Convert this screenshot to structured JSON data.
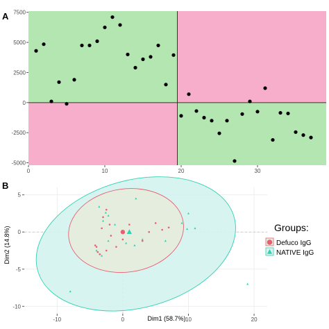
{
  "panels": {
    "a_label": "A",
    "b_label": "B"
  },
  "colors": {
    "quadrant_green": "#b3e6b0",
    "quadrant_pink": "#f7aecb",
    "point": "#000000",
    "defuco": "#e85f72",
    "native": "#2fd1b0",
    "ellipse_outer_fill": "#d4f3f0",
    "ellipse_outer_stroke": "#2fd1b0",
    "ellipse_inner_fill": "#e8ecdb",
    "ellipse_inner_stroke": "#e85f72"
  },
  "chart_data": [
    {
      "type": "scatter",
      "title": "",
      "xlabel": "",
      "ylabel": "",
      "xlim": [
        0,
        39
      ],
      "ylim": [
        -5200,
        7600
      ],
      "x_ticks": [
        0,
        10,
        20,
        30
      ],
      "y_ticks": [
        7500,
        5000,
        2500,
        0,
        -2500,
        -5000
      ],
      "x_tick_labels": [
        "0",
        "10",
        "20",
        "30"
      ],
      "y_tick_labels": [
        "7500",
        "5000",
        "2500",
        "0",
        "-2500",
        "-5000"
      ],
      "quadrant_split": {
        "x": 19.5,
        "y": 0
      },
      "quadrants": {
        "top_left": "green",
        "top_right": "pink",
        "bottom_left": "pink",
        "bottom_right": "green"
      },
      "grid": false,
      "points": [
        [
          1,
          4300
        ],
        [
          2,
          4850
        ],
        [
          3,
          100
        ],
        [
          4,
          1700
        ],
        [
          5,
          -100
        ],
        [
          6,
          1900
        ],
        [
          7,
          4750
        ],
        [
          8,
          4750
        ],
        [
          9,
          5100
        ],
        [
          10,
          6250
        ],
        [
          11,
          7100
        ],
        [
          12,
          6450
        ],
        [
          13,
          4000
        ],
        [
          14,
          2900
        ],
        [
          15,
          3600
        ],
        [
          16,
          3800
        ],
        [
          17,
          4750
        ],
        [
          18,
          1500
        ],
        [
          19,
          3950
        ],
        [
          20,
          -1100
        ],
        [
          21,
          700
        ],
        [
          22,
          -700
        ],
        [
          23,
          -1250
        ],
        [
          24,
          -1500
        ],
        [
          25,
          -2550
        ],
        [
          26,
          -1500
        ],
        [
          27,
          -4850
        ],
        [
          28,
          -950
        ],
        [
          29,
          100
        ],
        [
          30,
          -750
        ],
        [
          31,
          1200
        ],
        [
          32,
          -3100
        ],
        [
          33,
          -850
        ],
        [
          34,
          -900
        ],
        [
          35,
          -2450
        ],
        [
          36,
          -2700
        ],
        [
          37,
          -2900
        ]
      ]
    },
    {
      "type": "scatter",
      "title": "",
      "xlabel": "Dim1 (58.7%)",
      "ylabel": "Dim2 (14.8%)",
      "xlim": [
        -15,
        22
      ],
      "ylim": [
        -11,
        6
      ],
      "x_ticks": [
        -10,
        0,
        10,
        20
      ],
      "y_ticks": [
        5,
        0,
        -5,
        -10
      ],
      "x_tick_labels": [
        "-10",
        "0",
        "10",
        "20"
      ],
      "y_tick_labels": [
        "5",
        "0",
        "-5",
        "-10"
      ],
      "grid": true,
      "legend": {
        "title": "Groups:",
        "position": "right"
      },
      "series": [
        {
          "name": "Defuco IgG",
          "shape": "circle",
          "points": [
            [
              -3,
              2
            ],
            [
              -2,
              1
            ],
            [
              -4,
              -2
            ],
            [
              -1,
              -2
            ],
            [
              -3.5,
              -3
            ],
            [
              1,
              1
            ],
            [
              0,
              -1
            ],
            [
              4,
              0
            ],
            [
              6,
              0.3
            ],
            [
              -2.5,
              3
            ],
            [
              -3.2,
              0.5
            ],
            [
              -1.8,
              -0.5
            ],
            [
              -2.5,
              -2.5
            ],
            [
              5,
              1.2
            ],
            [
              7,
              0.6
            ],
            [
              3,
              -1.2
            ],
            [
              -4.2,
              -1.8
            ],
            [
              -3.8,
              -2.7
            ]
          ],
          "centroid": [
            0,
            0
          ]
        },
        {
          "name": "NATIVE IgG",
          "shape": "triangle",
          "points": [
            [
              -4,
              -2.5
            ],
            [
              -3,
              1.5
            ],
            [
              -2.2,
              2.2
            ],
            [
              0.5,
              -1.5
            ],
            [
              3,
              -1
            ],
            [
              10,
              2.5
            ],
            [
              9,
              1.2
            ],
            [
              11,
              0.5
            ],
            [
              19,
              -7
            ],
            [
              -8,
              -8
            ],
            [
              6.5,
              -1.2
            ],
            [
              -3.2,
              -3.2
            ],
            [
              -1.2,
              1
            ],
            [
              2,
              4.5
            ],
            [
              9.8,
              0.4
            ],
            [
              -2.6,
              2.6
            ],
            [
              1.8,
              -1.8
            ],
            [
              -3.6,
              3.4
            ],
            [
              -2.2,
              -1.2
            ]
          ],
          "centroid": [
            1,
            0
          ]
        }
      ],
      "ellipses": [
        {
          "group": "NATIVE IgG",
          "center": [
            2,
            -1.6
          ],
          "rx": 15.5,
          "ry": 8.6,
          "angle": -15
        },
        {
          "group": "Defuco IgG",
          "center": [
            0.5,
            0.2
          ],
          "rx": 8.8,
          "ry": 5.6,
          "angle": -8
        }
      ]
    }
  ]
}
